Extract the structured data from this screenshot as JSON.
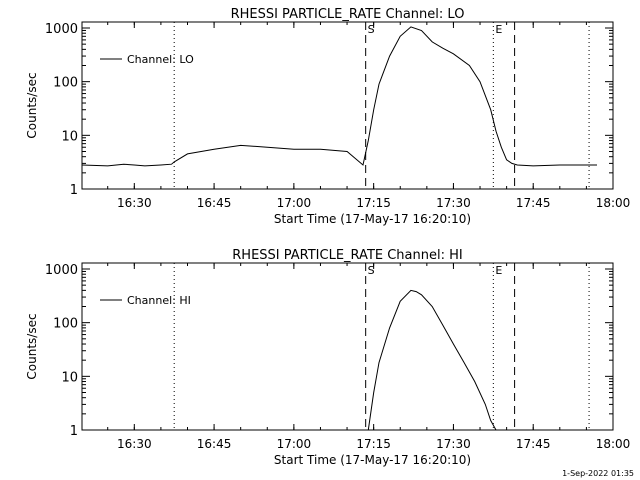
{
  "chart_data": [
    {
      "type": "line",
      "title": "RHESSI PARTICLE_RATE Channel: LO",
      "xlabel": "Start Time (17-May-17 16:20:10)",
      "ylabel": "Counts/sec",
      "yscale": "log",
      "ylim": [
        1,
        1000
      ],
      "xlim": [
        "16:20:10",
        "18:00"
      ],
      "xticks": [
        "16:30",
        "16:45",
        "17:00",
        "17:15",
        "17:30",
        "17:45",
        "18:00"
      ],
      "yticks": [
        "1",
        "10",
        "100",
        "1000"
      ],
      "legend": {
        "label": "Channel: LO",
        "position": "top-left"
      },
      "markers": [
        {
          "time": "16:37:30",
          "style": "dotted",
          "label": ""
        },
        {
          "time": "17:13:30",
          "style": "dashed",
          "label": "S"
        },
        {
          "time": "17:37:30",
          "style": "dotted",
          "label": "E"
        },
        {
          "time": "17:41:30",
          "style": "dashed",
          "label": ""
        },
        {
          "time": "17:55:30",
          "style": "dotted",
          "label": ""
        }
      ],
      "series": [
        {
          "name": "Channel: LO",
          "x": [
            "16:20:10",
            "16:25",
            "16:28",
            "16:30",
            "16:32",
            "16:35",
            "16:37",
            "16:37:30",
            "16:40",
            "16:45",
            "16:50",
            "16:55",
            "17:00",
            "17:05",
            "17:10",
            "17:13",
            "17:14",
            "17:15",
            "17:16",
            "17:18",
            "17:20",
            "17:22",
            "17:24",
            "17:26",
            "17:28",
            "17:30",
            "17:33",
            "17:35",
            "17:37",
            "17:38",
            "17:39",
            "17:40",
            "17:41",
            "17:42",
            "17:45",
            "17:50",
            "17:55",
            "17:57"
          ],
          "values": [
            2.8,
            2.7,
            2.9,
            2.8,
            2.7,
            2.8,
            2.9,
            3.2,
            4.5,
            5.5,
            6.5,
            6.0,
            5.5,
            5.5,
            5.0,
            2.8,
            8,
            30,
            90,
            300,
            700,
            1050,
            900,
            550,
            420,
            330,
            200,
            100,
            30,
            12,
            6,
            3.5,
            3,
            2.8,
            2.7,
            2.8,
            2.8,
            2.8
          ]
        }
      ]
    },
    {
      "type": "line",
      "title": "RHESSI PARTICLE_RATE Channel: HI",
      "xlabel": "Start Time (17-May-17 16:20:10)",
      "ylabel": "Counts/sec",
      "yscale": "log",
      "ylim": [
        1,
        1000
      ],
      "xlim": [
        "16:20:10",
        "18:00"
      ],
      "xticks": [
        "16:30",
        "16:45",
        "17:00",
        "17:15",
        "17:30",
        "17:45",
        "18:00"
      ],
      "yticks": [
        "1",
        "10",
        "100",
        "1000"
      ],
      "legend": {
        "label": "Channel: HI",
        "position": "top-left"
      },
      "markers": [
        {
          "time": "16:37:30",
          "style": "dotted",
          "label": ""
        },
        {
          "time": "17:13:30",
          "style": "dashed",
          "label": "S"
        },
        {
          "time": "17:37:30",
          "style": "dotted",
          "label": "E"
        },
        {
          "time": "17:41:30",
          "style": "dashed",
          "label": ""
        },
        {
          "time": "17:55:30",
          "style": "dotted",
          "label": ""
        }
      ],
      "series": [
        {
          "name": "Channel: HI",
          "x": [
            "17:14",
            "17:15",
            "17:16",
            "17:18",
            "17:20",
            "17:22",
            "17:23",
            "17:24",
            "17:26",
            "17:28",
            "17:30",
            "17:32",
            "17:34",
            "17:36",
            "17:37",
            "17:38"
          ],
          "values": [
            1,
            5,
            18,
            80,
            250,
            400,
            380,
            330,
            200,
            90,
            40,
            18,
            8,
            3,
            1.5,
            1
          ]
        }
      ]
    }
  ],
  "footer": {
    "timestamp": "1-Sep-2022 01:35"
  }
}
